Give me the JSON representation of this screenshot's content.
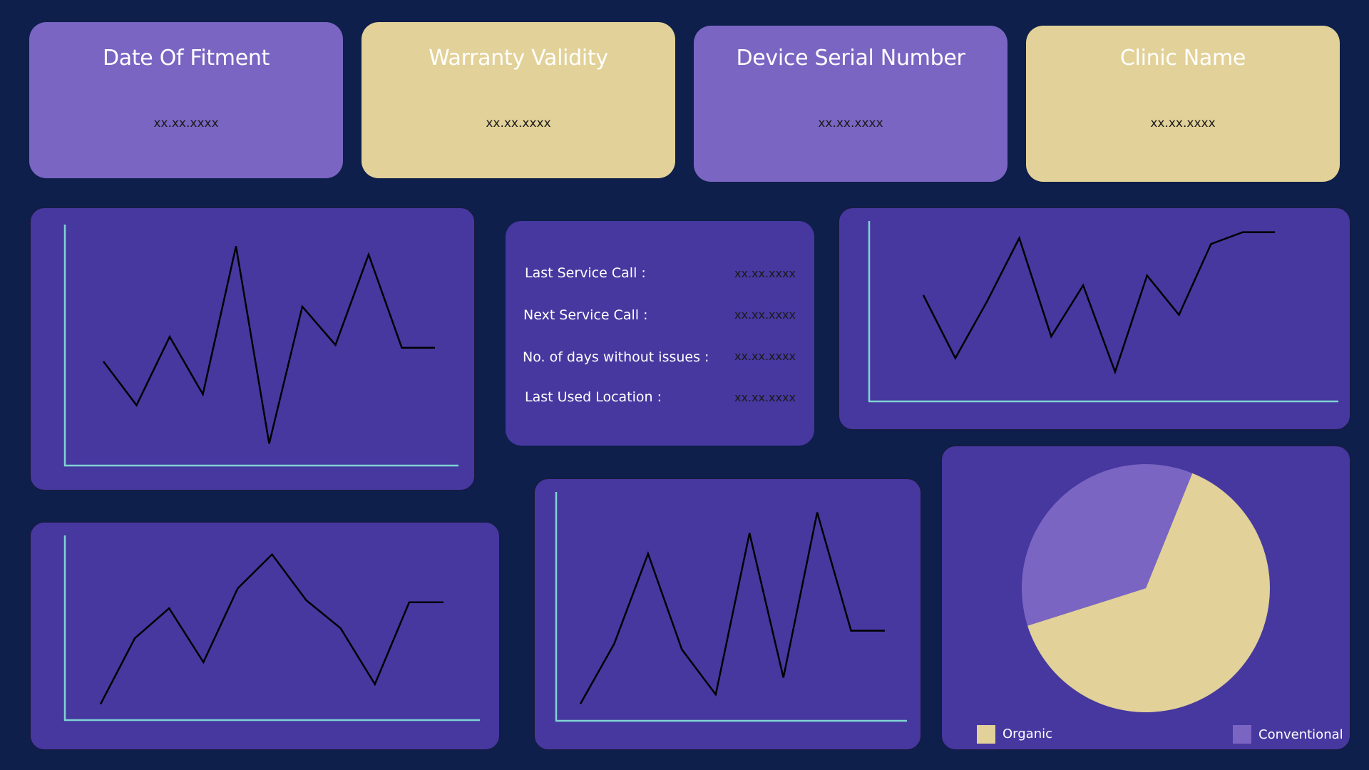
{
  "cards": [
    {
      "title": "Date Of Fitment",
      "value": "xx.xx.xxxx"
    },
    {
      "title": "Warranty Validity",
      "value": "xx.xx.xxxx"
    },
    {
      "title": "Device Serial Number",
      "value": "xx.xx.xxxx"
    },
    {
      "title": "Clinic Name",
      "value": "xx.xx.xxxx"
    }
  ],
  "info": {
    "rows": [
      {
        "label": "Last Service Call :",
        "value": "xx.xx.xxxx"
      },
      {
        "label": "Next Service Call :",
        "value": "xx.xx.xxxx"
      },
      {
        "label": "No. of days without issues :",
        "value": "xx.xx.xxxx"
      },
      {
        "label": "Last Used Location :",
        "value": "xx.xx.xxxx"
      }
    ]
  },
  "colors": {
    "background": "#0d1f4a",
    "card_purple": "#7a65c3",
    "card_gold": "#e2d198",
    "panel": "#46389f",
    "axis": "#7fd3d3",
    "line": "#000000"
  },
  "chart_data": [
    {
      "type": "line",
      "x": [
        1,
        2,
        3,
        4,
        5,
        6,
        7,
        8,
        9,
        10,
        11
      ],
      "series": [
        {
          "values": [
            38,
            22,
            47,
            26,
            80,
            8,
            58,
            44,
            77,
            43,
            43
          ]
        }
      ],
      "ylim": [
        0,
        90
      ],
      "grid": false
    },
    {
      "type": "line",
      "x": [
        1,
        2,
        3,
        4,
        5,
        6,
        7,
        8,
        9,
        10,
        11,
        12
      ],
      "series": [
        {
          "values": [
            54,
            22,
            51,
            83,
            33,
            59,
            15,
            64,
            44,
            80,
            86,
            86
          ]
        }
      ],
      "ylim": [
        0,
        100
      ],
      "grid": false
    },
    {
      "type": "line",
      "x": [
        1,
        2,
        3,
        4,
        5,
        6,
        7,
        8,
        9,
        10,
        11
      ],
      "series": [
        {
          "values": [
            8,
            41,
            56,
            29,
            66,
            83,
            60,
            46,
            18,
            59,
            59
          ]
        }
      ],
      "ylim": [
        0,
        100
      ],
      "grid": false
    },
    {
      "type": "line",
      "x": [
        1,
        2,
        3,
        4,
        5,
        6,
        7,
        8,
        9,
        10
      ],
      "series": [
        {
          "values": [
            9,
            41,
            89,
            38,
            14,
            100,
            23,
            111,
            48,
            48
          ]
        }
      ],
      "ylim": [
        0,
        120
      ],
      "grid": false
    },
    {
      "type": "pie",
      "categories": [
        "Organic",
        "Conventional"
      ],
      "values": [
        64,
        36
      ],
      "colors": [
        "#e2d198",
        "#7a65c3"
      ],
      "legend": "bottom"
    }
  ]
}
